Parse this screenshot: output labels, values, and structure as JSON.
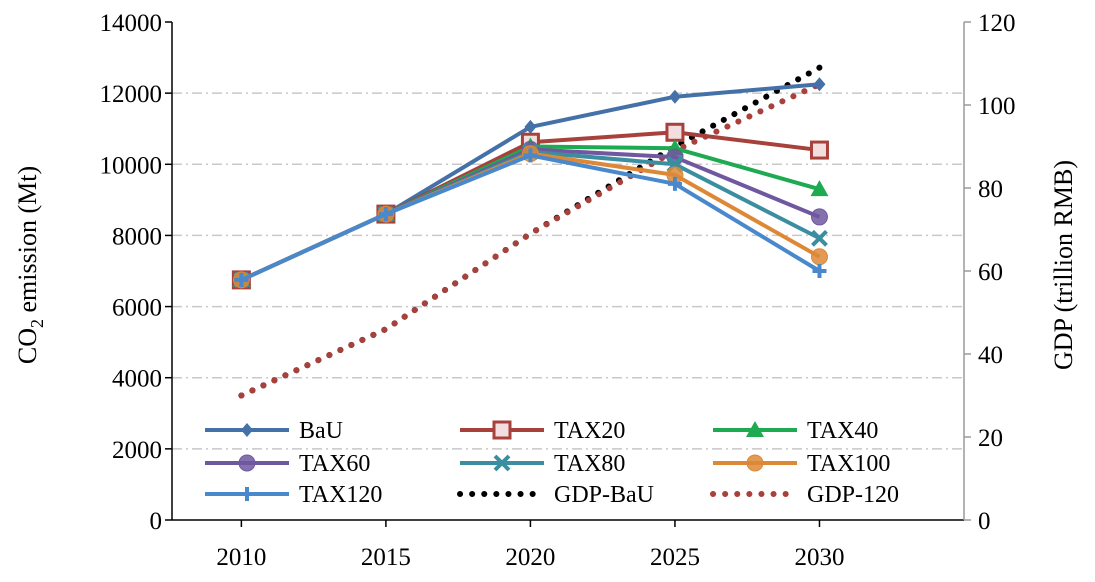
{
  "chart_data": {
    "type": "line",
    "categories": [
      "2010",
      "2015",
      "2020",
      "2025",
      "2030"
    ],
    "x": [
      2010,
      2015,
      2020,
      2025,
      2030
    ],
    "ylabel_left": "CO2 emission (Mt)",
    "ylabel_left_parts": {
      "pre": "CO",
      "sub": "2",
      "post": " emission (Mt)"
    },
    "ylabel_right": "GDP (trillion RMB)",
    "xlabel": "",
    "title": "",
    "ylim_left": [
      0,
      14000
    ],
    "yticks_left": [
      0,
      2000,
      4000,
      6000,
      8000,
      10000,
      12000,
      14000
    ],
    "ylim_right": [
      0,
      120
    ],
    "yticks_right": [
      0,
      20,
      40,
      60,
      80,
      100,
      120
    ],
    "grid": "horizontal dash-dot",
    "legend_placement": "bottom, 3 columns",
    "series": [
      {
        "name": "BaU",
        "axis": "left",
        "color": "#4471a8",
        "marker": "diamond",
        "style": "solid",
        "values": [
          6750,
          8600,
          11050,
          11900,
          12250
        ]
      },
      {
        "name": "TAX20",
        "axis": "left",
        "color": "#a8403c",
        "marker": "square",
        "style": "solid",
        "values": [
          6750,
          8600,
          10620,
          10900,
          10400
        ]
      },
      {
        "name": "TAX40",
        "axis": "left",
        "color": "#1eaa50",
        "marker": "triangle",
        "style": "solid",
        "values": [
          6750,
          8600,
          10500,
          10450,
          9300
        ]
      },
      {
        "name": "TAX60",
        "axis": "left",
        "color": "#7058a0",
        "marker": "circle",
        "style": "solid",
        "values": [
          6750,
          8600,
          10420,
          10200,
          8520
        ]
      },
      {
        "name": "TAX80",
        "axis": "left",
        "color": "#3a8ea0",
        "marker": "x",
        "style": "solid",
        "values": [
          6750,
          8600,
          10350,
          10000,
          7920
        ]
      },
      {
        "name": "TAX100",
        "axis": "left",
        "color": "#dd8836",
        "marker": "circle",
        "style": "solid",
        "values": [
          6750,
          8600,
          10300,
          9700,
          7400
        ]
      },
      {
        "name": "TAX120",
        "axis": "left",
        "color": "#4a88cc",
        "marker": "plus",
        "style": "solid",
        "values": [
          6750,
          8600,
          10250,
          9450,
          7000
        ]
      },
      {
        "name": "GDP-BaU",
        "axis": "right",
        "color": "#000000",
        "marker": "none",
        "style": "dotted",
        "values": [
          30,
          46,
          69,
          90,
          109
        ]
      },
      {
        "name": "GDP-120",
        "axis": "right",
        "color": "#a8403c",
        "marker": "none",
        "style": "dotted",
        "values": [
          30,
          46,
          69,
          89,
          105
        ]
      }
    ]
  }
}
